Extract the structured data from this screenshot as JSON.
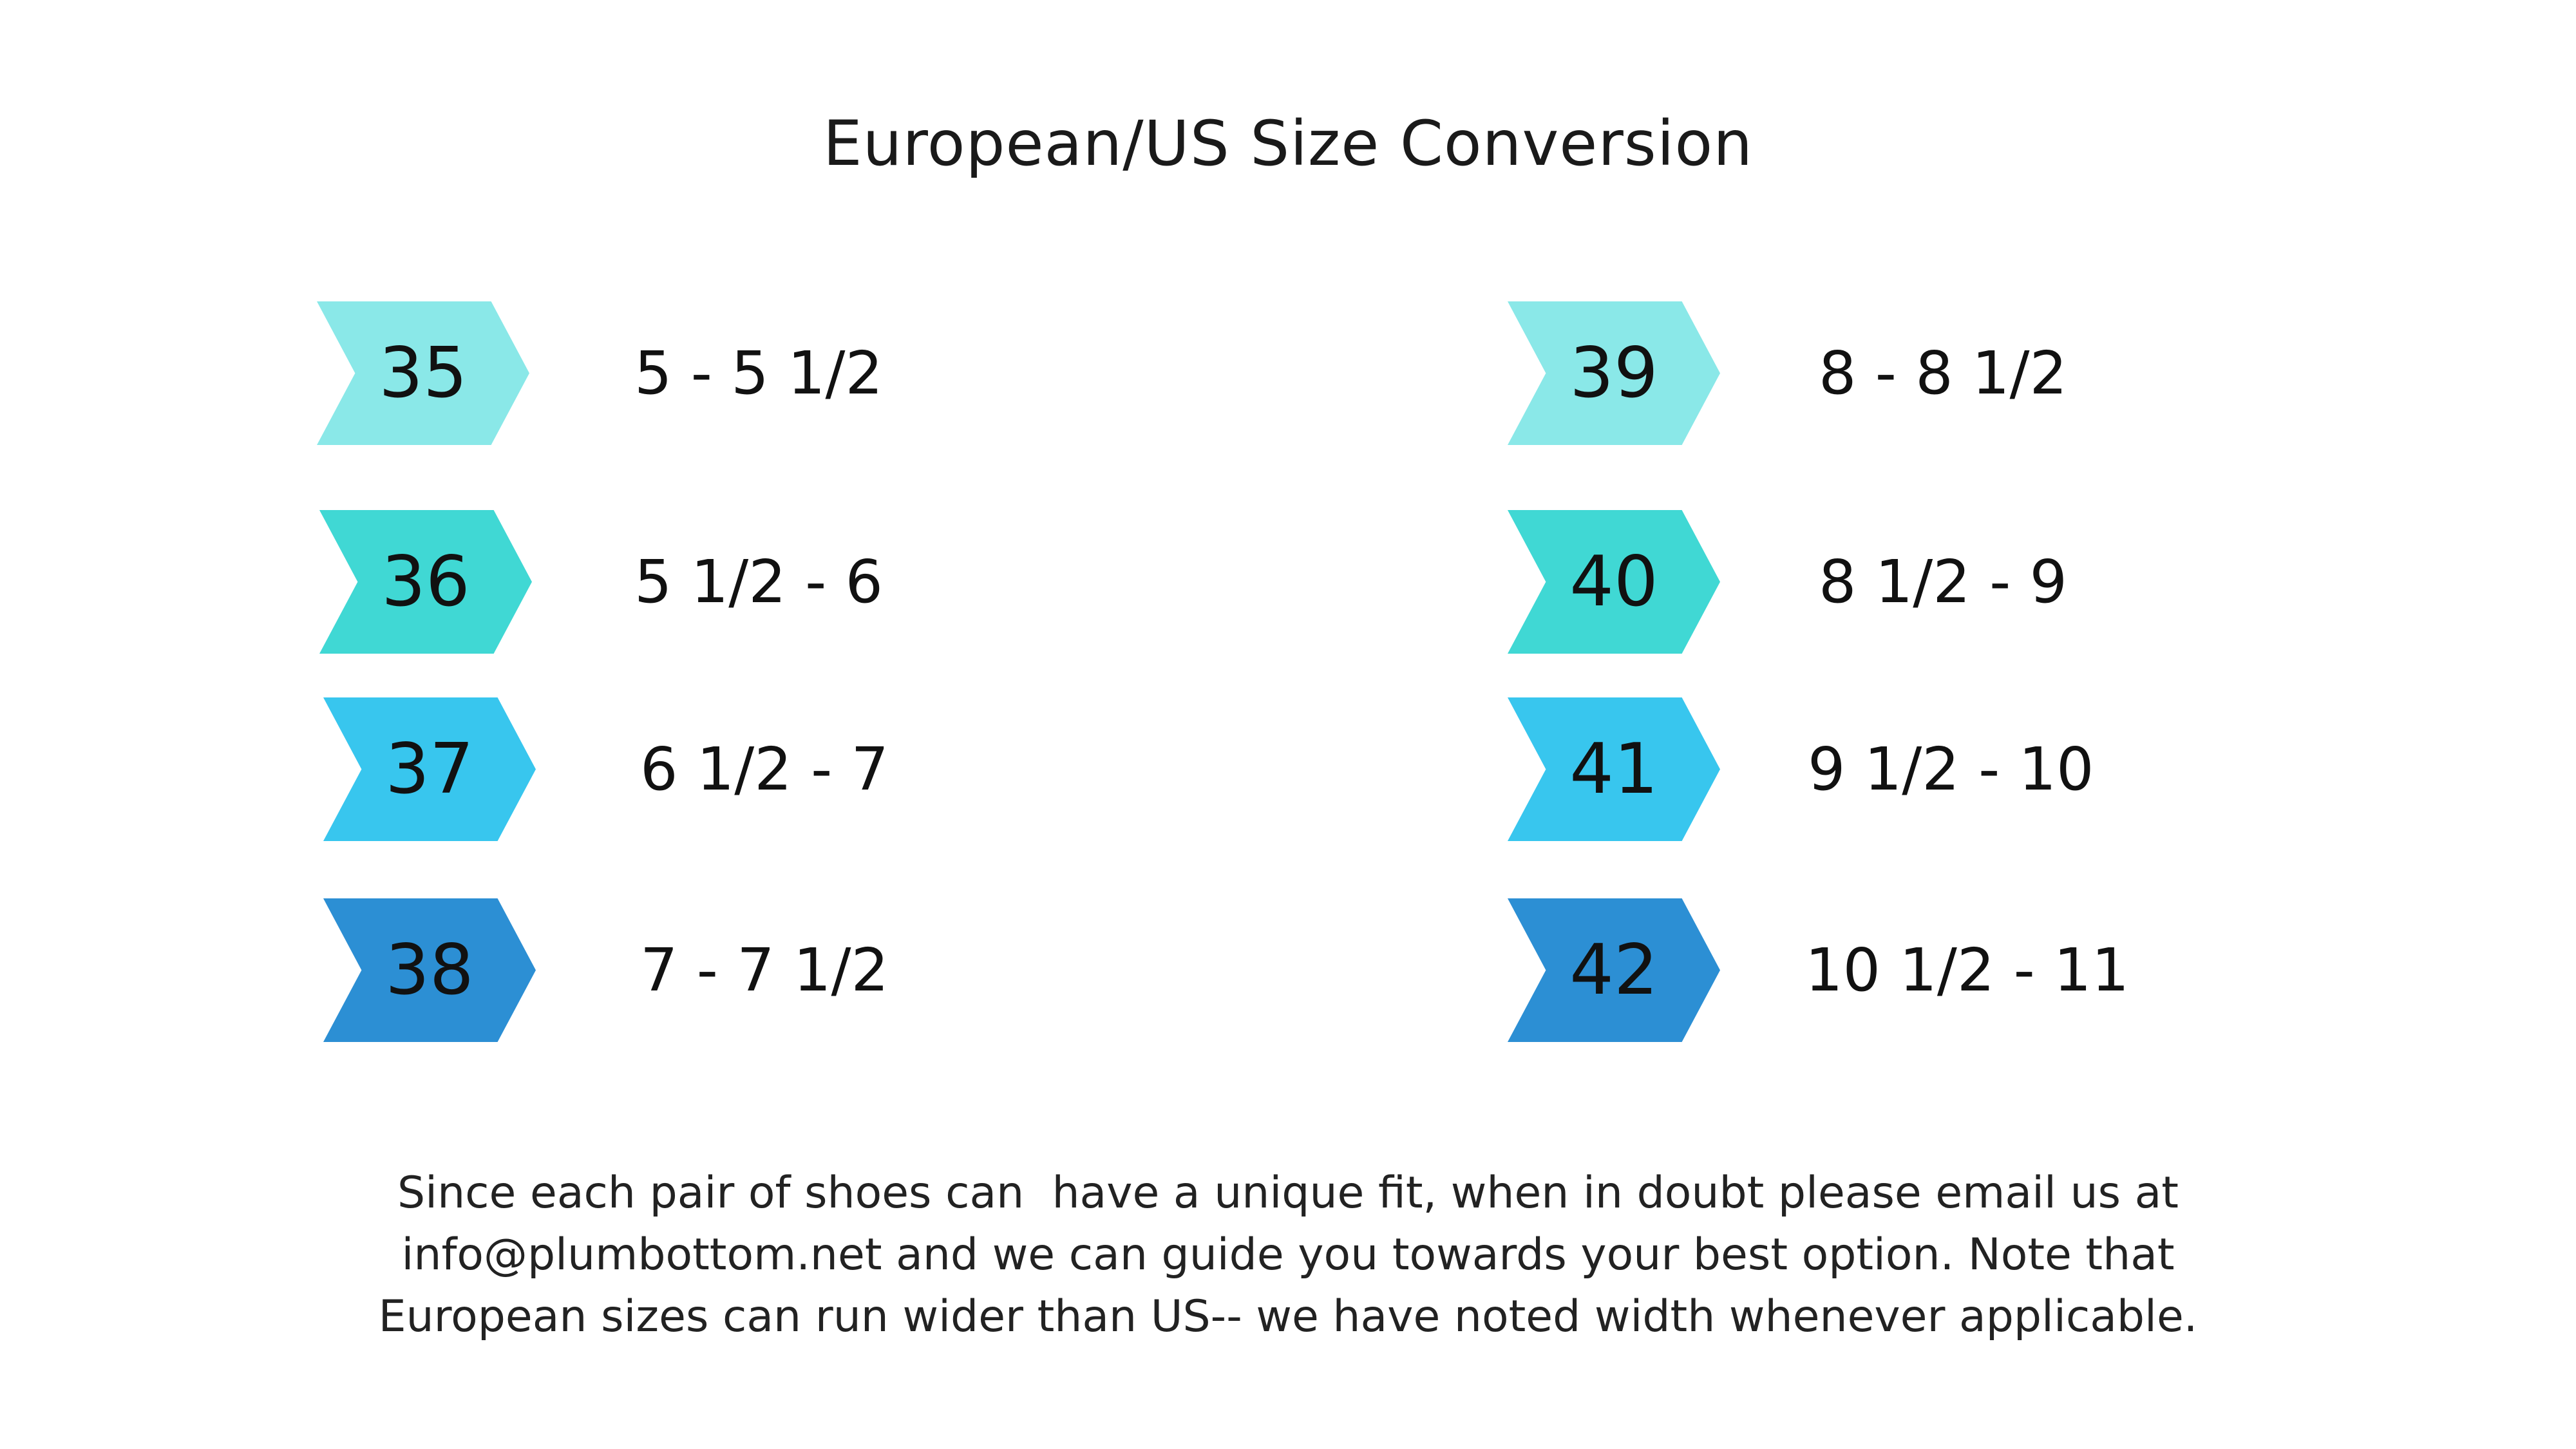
{
  "title": "European/US Size Conversion",
  "colors": {
    "tier1": "#8AE8E8",
    "tier2": "#40D8D4",
    "tier3": "#38C6EE",
    "tier4": "#2C8FD4"
  },
  "left_column": [
    {
      "eu": "35",
      "us": "5 - 5 1/2",
      "color": "#8AE8E8"
    },
    {
      "eu": "36",
      "us": "5 1/2 - 6",
      "color": "#40D8D4"
    },
    {
      "eu": "37",
      "us": "6 1/2 - 7",
      "color": "#38C6EE"
    },
    {
      "eu": "38",
      "us": "7 - 7 1/2",
      "color": "#2C8FD4"
    }
  ],
  "right_column": [
    {
      "eu": "39",
      "us": "8 - 8 1/2",
      "color": "#8AE8E8"
    },
    {
      "eu": "40",
      "us": "8 1/2 - 9",
      "color": "#40D8D4"
    },
    {
      "eu": "41",
      "us": "9 1/2 - 10",
      "color": "#38C6EE"
    },
    {
      "eu": "42",
      "us": "10 1/2 - 11",
      "color": "#2C8FD4"
    }
  ],
  "note": {
    "line1": "Since each pair of shoes can  have a unique fit, when in doubt please email us at",
    "line2": "info@plumbottom.net and we can guide you towards your best option. Note that",
    "line3": "European sizes can run wider than US-- we have noted width whenever applicable."
  }
}
